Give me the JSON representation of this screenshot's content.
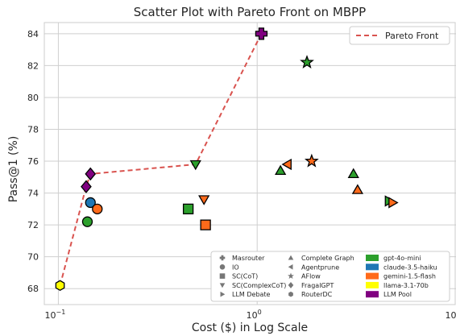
{
  "chart_data": {
    "type": "scatter",
    "title": "Scatter Plot with Pareto Front on MBPP",
    "xlabel": "Cost ($) in Log Scale",
    "ylabel": "Pass@1 (%)",
    "xscale": "log",
    "xlim": [
      0.085,
      10
    ],
    "ylim": [
      67.0,
      84.7
    ],
    "x_ticks": [
      {
        "value": 0.1,
        "base": "10",
        "exp": "−1"
      },
      {
        "value": 1,
        "base": "10",
        "exp": "0"
      },
      {
        "value": 10,
        "base": "10",
        "exp": "1"
      }
    ],
    "y_ticks": [
      68,
      70,
      72,
      74,
      76,
      78,
      80,
      82,
      84
    ],
    "grid": true,
    "pareto_front": {
      "label": "Pareto Front",
      "color": "#d9534f",
      "points": [
        [
          0.102,
          68.2
        ],
        [
          0.138,
          74.4
        ],
        [
          0.145,
          75.2
        ],
        [
          0.49,
          75.8
        ],
        [
          1.05,
          84.0
        ]
      ]
    },
    "method_legend": [
      {
        "label": "Masrouter",
        "marker": "plus"
      },
      {
        "label": "IO",
        "marker": "circle"
      },
      {
        "label": "SC(CoT)",
        "marker": "square"
      },
      {
        "label": "SC(ComplexCoT)",
        "marker": "triangle-down"
      },
      {
        "label": "LLM Debate",
        "marker": "triangle-right"
      },
      {
        "label": "Complete Graph",
        "marker": "triangle-up"
      },
      {
        "label": "Agentprune",
        "marker": "triangle-left"
      },
      {
        "label": "AFlow",
        "marker": "star"
      },
      {
        "label": "FragalGPT",
        "marker": "diamond"
      },
      {
        "label": "RouterDC",
        "marker": "hexagon"
      }
    ],
    "model_legend": [
      {
        "label": "gpt-4o-mini",
        "color": "#2ca02c"
      },
      {
        "label": "claude-3.5-haiku",
        "color": "#1f77b4"
      },
      {
        "label": "gemini-1.5-flash",
        "color": "#ff6a1a"
      },
      {
        "label": "llama-3.1-70b",
        "color": "#ffff00"
      },
      {
        "label": "LLM Pool",
        "color": "#800080"
      }
    ],
    "points": [
      {
        "method": "Masrouter",
        "marker": "plus",
        "color": "#800080",
        "x": 1.05,
        "y": 84.0
      },
      {
        "method": "AFlow",
        "marker": "star",
        "color": "#2ca02c",
        "x": 1.78,
        "y": 82.2
      },
      {
        "method": "AFlow",
        "marker": "star",
        "color": "#ff6a1a",
        "x": 1.88,
        "y": 76.0
      },
      {
        "method": "SC(ComplexCoT)",
        "marker": "triangle-down",
        "color": "#2ca02c",
        "x": 0.49,
        "y": 75.8
      },
      {
        "method": "Agentprune",
        "marker": "triangle-left",
        "color": "#ff6a1a",
        "x": 1.42,
        "y": 75.8
      },
      {
        "method": "Complete Graph",
        "marker": "triangle-up",
        "color": "#2ca02c",
        "x": 1.31,
        "y": 75.4
      },
      {
        "method": "Complete Graph",
        "marker": "triangle-up",
        "color": "#2ca02c",
        "x": 3.05,
        "y": 75.2
      },
      {
        "method": "FragalGPT",
        "marker": "diamond",
        "color": "#800080",
        "x": 0.145,
        "y": 75.2
      },
      {
        "method": "FragalGPT",
        "marker": "diamond",
        "color": "#800080",
        "x": 0.138,
        "y": 74.4
      },
      {
        "method": "Complete Graph",
        "marker": "triangle-up",
        "color": "#ff6a1a",
        "x": 3.2,
        "y": 74.2
      },
      {
        "method": "SC(ComplexCoT)",
        "marker": "triangle-down",
        "color": "#ff6a1a",
        "x": 0.54,
        "y": 73.6
      },
      {
        "method": "LLM Debate",
        "marker": "triangle-right",
        "color": "#2ca02c",
        "x": 4.6,
        "y": 73.5
      },
      {
        "method": "LLM Debate",
        "marker": "triangle-right",
        "color": "#ff6a1a",
        "x": 4.8,
        "y": 73.4
      },
      {
        "method": "IO",
        "marker": "circle",
        "color": "#1f77b4",
        "x": 0.145,
        "y": 73.4
      },
      {
        "method": "IO",
        "marker": "circle",
        "color": "#ff6a1a",
        "x": 0.157,
        "y": 73.0
      },
      {
        "method": "SC(CoT)",
        "marker": "square",
        "color": "#2ca02c",
        "x": 0.45,
        "y": 73.0
      },
      {
        "method": "IO",
        "marker": "circle",
        "color": "#2ca02c",
        "x": 0.14,
        "y": 72.2
      },
      {
        "method": "SC(CoT)",
        "marker": "square",
        "color": "#ff6a1a",
        "x": 0.55,
        "y": 72.0
      },
      {
        "method": "RouterDC",
        "marker": "hexagon",
        "color": "#ffff00",
        "x": 0.102,
        "y": 68.2
      }
    ]
  }
}
